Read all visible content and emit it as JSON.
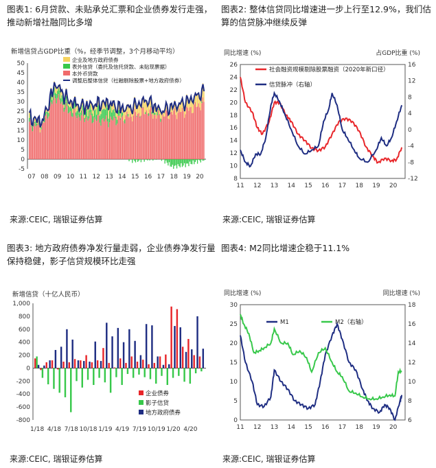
{
  "charts": [
    {
      "caption": "图表1: 6月贷款、未贴承兑汇票和企业债券发行走强，推动新增社融同比多增",
      "source": "来源:CEIC, 瑞银证券估算",
      "chart_data": {
        "type": "bar",
        "title": "新增信贷占GDP比重（%，经季节调整，3个月移动平均）",
        "x_ticks": [
          "07",
          "08",
          "09",
          "10",
          "11",
          "12",
          "13",
          "14",
          "15",
          "16",
          "17",
          "18",
          "19",
          "20"
        ],
        "ylim": [
          -5,
          50
        ],
        "y_ticks": [
          -5,
          0,
          5,
          10,
          15,
          20,
          25,
          30,
          35,
          40,
          45,
          50
        ],
        "series": [
          {
            "name": "本外币贷款",
            "color": "#f06b6b",
            "yearly": [
              18,
              17,
              33,
              25,
              22,
              21,
              20,
              21,
              23,
              25,
              22,
              24,
              25,
              28
            ]
          },
          {
            "name": "表外信贷（委托及信托贷款、未贴现票据）",
            "color": "#37c84a",
            "yearly": [
              2,
              1,
              4,
              3,
              3,
              4,
              6,
              2,
              -1,
              0,
              1,
              -4,
              -3,
              -1
            ]
          },
          {
            "name": "企业及地方政府债券",
            "color": "#f5d25e",
            "yearly": [
              2,
              2,
              3,
              3,
              3,
              4,
              4,
              4,
              5,
              6,
              3,
              4,
              5,
              6
            ]
          },
          {
            "name": "调整后整体信贷（社融剔除股票+地方政府债券）",
            "color": "#1e2d82",
            "yearly": [
              22,
              21,
              40,
              32,
              30,
              29,
              30,
              27,
              27,
              31,
              26,
              25,
              28,
              38
            ]
          }
        ],
        "legend": [
          "企业及地方政府债券",
          "表外信贷（委托及信托贷款、未贴现票据）",
          "本外币贷款",
          "调整后整体信贷（社融剔除股票+地方政府债券）"
        ]
      }
    },
    {
      "caption": "图表2: 整体信贷同比增速进一步上行至12.9%，我们估算的信贷脉冲继续反弹",
      "source": "来源:CEIC, 瑞银证券估算",
      "chart_data": {
        "type": "line",
        "ylabel_left": "同比增速 (%)",
        "ylabel_right": "占GDP比重 (%)",
        "x_ticks": [
          "11",
          "12",
          "13",
          "14",
          "15",
          "16",
          "17",
          "18",
          "19",
          "20"
        ],
        "ylim_left": [
          8,
          26
        ],
        "y_ticks_left": [
          8,
          10,
          12,
          14,
          16,
          18,
          20,
          22,
          24,
          26
        ],
        "ylim_right": [
          -12,
          16
        ],
        "y_ticks_right": [
          -12,
          -8,
          -4,
          0,
          4,
          8,
          12,
          16
        ],
        "series": [
          {
            "name": "社会融资规模剔除股票融资（2020年新口径）",
            "color": "#e8262a",
            "axis": "left",
            "points": [
              [
                2011,
                24
              ],
              [
                2011.3,
                20
              ],
              [
                2011.7,
                18.5
              ],
              [
                2012,
                16
              ],
              [
                2012.3,
                15
              ],
              [
                2012.7,
                17
              ],
              [
                2013,
                20
              ],
              [
                2013.3,
                20
              ],
              [
                2013.7,
                18
              ],
              [
                2014,
                17
              ],
              [
                2014.4,
                15
              ],
              [
                2014.8,
                14
              ],
              [
                2015.2,
                12.8
              ],
              [
                2015.6,
                12.4
              ],
              [
                2016,
                13
              ],
              [
                2016.4,
                15
              ],
              [
                2016.8,
                17
              ],
              [
                2017.2,
                17.5
              ],
              [
                2017.6,
                17
              ],
              [
                2018,
                15.5
              ],
              [
                2018.4,
                13
              ],
              [
                2018.8,
                11.5
              ],
              [
                2019.1,
                10.5
              ],
              [
                2019.5,
                11.2
              ],
              [
                2019.9,
                10.8
              ],
              [
                2020.2,
                11.0
              ],
              [
                2020.5,
                12.9
              ]
            ]
          },
          {
            "name": "信贷脉冲（右轴）",
            "color": "#1e2d82",
            "axis": "right",
            "points": [
              [
                2011,
                -5
              ],
              [
                2011.3,
                -8
              ],
              [
                2011.6,
                -9
              ],
              [
                2011.9,
                -6
              ],
              [
                2012.2,
                -6
              ],
              [
                2012.5,
                -2
              ],
              [
                2012.8,
                6
              ],
              [
                2013.0,
                9
              ],
              [
                2013.3,
                7
              ],
              [
                2013.6,
                4
              ],
              [
                2014.0,
                0
              ],
              [
                2014.4,
                -4
              ],
              [
                2014.8,
                -6
              ],
              [
                2015.2,
                -5
              ],
              [
                2015.6,
                -4
              ],
              [
                2015.9,
                2
              ],
              [
                2016.2,
                5
              ],
              [
                2016.4,
                9
              ],
              [
                2016.7,
                6
              ],
              [
                2017.0,
                0
              ],
              [
                2017.3,
                -2
              ],
              [
                2017.7,
                -5
              ],
              [
                2018.0,
                -7
              ],
              [
                2018.5,
                -8
              ],
              [
                2019.0,
                -5
              ],
              [
                2019.3,
                -2
              ],
              [
                2019.6,
                -4
              ],
              [
                2019.9,
                -2
              ],
              [
                2020.2,
                2
              ],
              [
                2020.5,
                6
              ]
            ]
          }
        ]
      }
    },
    {
      "caption": "图表3: 地方政府债券净发行量走弱，企业债券净发行量保持稳健，影子信贷规模环比走强",
      "source": "来源:CEIC, 瑞银证券估算",
      "chart_data": {
        "type": "bar",
        "title": "新增信贷（十亿人民币）",
        "x_ticks": [
          "1/18",
          "4/18",
          "7/18",
          "10/18",
          "1/19",
          "4/19",
          "7/19",
          "10/19",
          "1/20",
          "4/20"
        ],
        "ylim": [
          -800,
          1000
        ],
        "y_ticks": [
          -800,
          -600,
          -400,
          -200,
          0,
          200,
          400,
          600,
          800,
          1000
        ],
        "legend": [
          "企业债券",
          "影子信贷",
          "地方政府债券"
        ],
        "series": [
          {
            "name": "企业债券",
            "color": "#e8262a",
            "values": [
              150,
              -30,
              90,
              120,
              -20,
              100,
              90,
              140,
              120,
              200,
              90,
              120,
              310,
              80,
              10,
              150,
              80,
              180,
              100,
              130,
              60,
              80,
              180,
              210,
              950,
              910,
              330,
              450,
              200,
              180
            ]
          },
          {
            "name": "影子信贷",
            "color": "#37c84a",
            "values": [
              180,
              -150,
              -250,
              -320,
              -380,
              -450,
              -680,
              -200,
              -300,
              -180,
              -260,
              -150,
              -220,
              -380,
              -140,
              -260,
              -90,
              -150,
              -100,
              -140,
              -170,
              -240,
              -120,
              -260,
              -150,
              -120,
              -210,
              -240,
              -80,
              -50
            ]
          },
          {
            "name": "地方政府债券",
            "color": "#1e2d82",
            "values": [
              50,
              40,
              120,
              280,
              330,
              600,
              440,
              120,
              110,
              100,
              410,
              110,
              700,
              490,
              620,
              400,
              600,
              420,
              200,
              680,
              660,
              180,
              50,
              60,
              650,
              630,
              250,
              290,
              800,
              300
            ]
          }
        ]
      }
    },
    {
      "caption": "图表4: M2同比增速企稳于11.1%",
      "source": "来源:CEIC, 瑞银证券估算",
      "chart_data": {
        "type": "line",
        "ylabel_left": "同比增速 (%)",
        "ylabel_right": "同比增速 (%)",
        "x_ticks": [
          "11",
          "12",
          "13",
          "14",
          "15",
          "16",
          "17",
          "18",
          "19",
          "20"
        ],
        "ylim_left": [
          0,
          30
        ],
        "y_ticks_left": [
          0,
          5,
          10,
          15,
          20,
          25,
          30
        ],
        "ylim_right": [
          6,
          18
        ],
        "y_ticks_right": [
          6,
          8,
          10,
          12,
          14,
          16,
          18
        ],
        "series": [
          {
            "name": "M1",
            "color": "#1e2d82",
            "axis": "left",
            "points": [
              [
                2011,
                22
              ],
              [
                2011.3,
                15
              ],
              [
                2011.7,
                10
              ],
              [
                2012,
                4
              ],
              [
                2012.4,
                3.5
              ],
              [
                2012.8,
                6
              ],
              [
                2013.0,
                13
              ],
              [
                2013.4,
                10
              ],
              [
                2013.8,
                8
              ],
              [
                2014.2,
                5
              ],
              [
                2014.6,
                4
              ],
              [
                2015.0,
                3
              ],
              [
                2015.4,
                4
              ],
              [
                2015.7,
                10
              ],
              [
                2016.0,
                17
              ],
              [
                2016.4,
                22
              ],
              [
                2016.7,
                25
              ],
              [
                2017.0,
                21
              ],
              [
                2017.4,
                15
              ],
              [
                2017.8,
                13
              ],
              [
                2018.2,
                8
              ],
              [
                2018.5,
                5
              ],
              [
                2018.8,
                3
              ],
              [
                2019.2,
                2
              ],
              [
                2019.5,
                4
              ],
              [
                2019.8,
                3
              ],
              [
                2020.1,
                0
              ],
              [
                2020.4,
                5
              ],
              [
                2020.5,
                6.5
              ]
            ]
          },
          {
            "name": "M2（右轴）",
            "color": "#37c84a",
            "axis": "right",
            "points": [
              [
                2011,
                17
              ],
              [
                2011.2,
                16
              ],
              [
                2011.5,
                15
              ],
              [
                2011.8,
                13
              ],
              [
                2012.1,
                13.2
              ],
              [
                2012.4,
                13.5
              ],
              [
                2012.8,
                14
              ],
              [
                2013.0,
                15.5
              ],
              [
                2013.4,
                14
              ],
              [
                2013.8,
                14
              ],
              [
                2014.1,
                12.8
              ],
              [
                2014.5,
                13.2
              ],
              [
                2014.9,
                12.5
              ],
              [
                2015.2,
                11
              ],
              [
                2015.6,
                13
              ],
              [
                2016.0,
                13.5
              ],
              [
                2016.4,
                12
              ],
              [
                2016.7,
                11
              ],
              [
                2017.0,
                10.5
              ],
              [
                2017.4,
                9
              ],
              [
                2017.8,
                8.8
              ],
              [
                2018.2,
                8.4
              ],
              [
                2018.6,
                8.2
              ],
              [
                2019.0,
                8.2
              ],
              [
                2019.4,
                8.4
              ],
              [
                2019.8,
                8.6
              ],
              [
                2020.1,
                8.5
              ],
              [
                2020.3,
                11
              ],
              [
                2020.5,
                11.1
              ]
            ]
          }
        ]
      }
    }
  ]
}
